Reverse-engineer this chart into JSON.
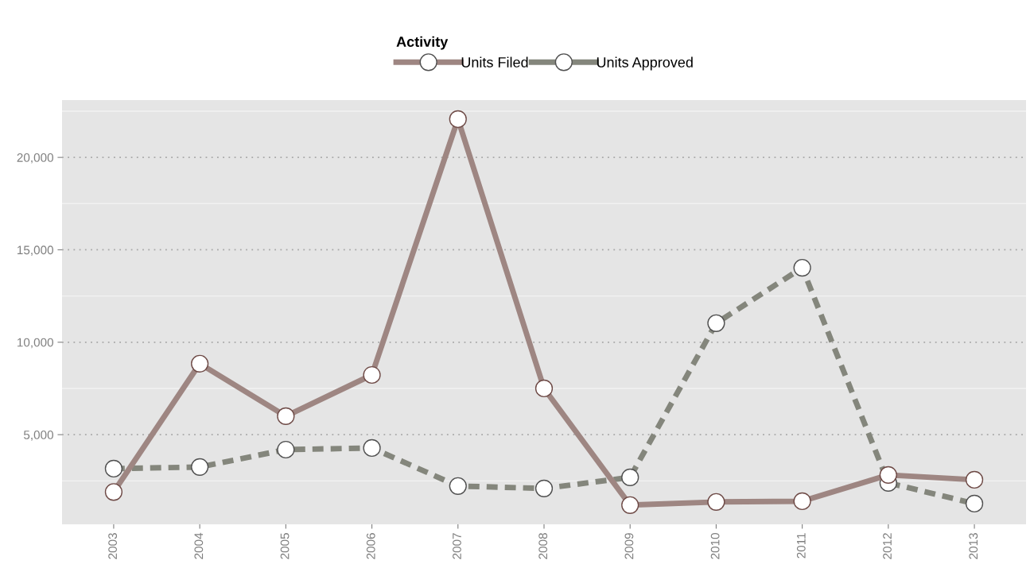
{
  "chart_data": {
    "type": "line",
    "legend_title": "Activity",
    "categories": [
      "2003",
      "2004",
      "2005",
      "2006",
      "2007",
      "2008",
      "2009",
      "2010",
      "2011",
      "2012",
      "2013"
    ],
    "series": [
      {
        "name": "Units Filed",
        "color": "#9e8682",
        "line_style": "solid",
        "values": [
          1900,
          8840,
          6000,
          8230,
          22070,
          7500,
          1190,
          1360,
          1400,
          2820,
          2560
        ]
      },
      {
        "name": "Units Approved",
        "color": "#84867c",
        "line_style": "dashed",
        "values": [
          3160,
          3250,
          4190,
          4280,
          2220,
          2090,
          2690,
          11030,
          14030,
          2390,
          1270
        ]
      }
    ],
    "ylim": [
      150,
      23100
    ],
    "yticks": [
      {
        "value": 5000,
        "label": "5,000"
      },
      {
        "value": 10000,
        "label": "10,000"
      },
      {
        "value": 15000,
        "label": "15,000"
      },
      {
        "value": 20000,
        "label": "20,000"
      }
    ],
    "grid": "y",
    "legend": "top",
    "marker": "circle"
  }
}
